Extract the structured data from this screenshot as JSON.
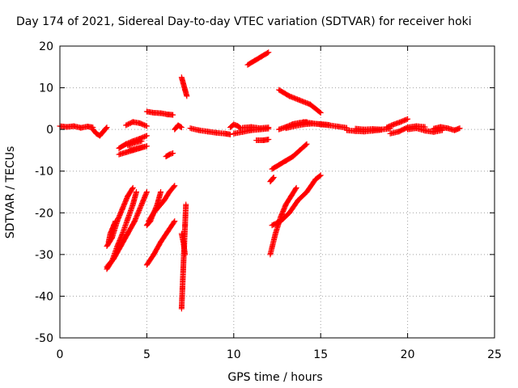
{
  "chart_data": {
    "type": "scatter",
    "title": "Day 174 of 2021, Sidereal Day-to-day VTEC variation (SDTVAR) for receiver hoki",
    "xlabel": "GPS time / hours",
    "ylabel": "SDTVAR / TECUs",
    "xlim": [
      0,
      25
    ],
    "ylim": [
      -50,
      20
    ],
    "xticks": [
      0,
      5,
      10,
      15,
      20,
      25
    ],
    "yticks": [
      -50,
      -40,
      -30,
      -20,
      -10,
      0,
      10,
      20
    ],
    "xtick_labels": [
      "0",
      "5",
      "10",
      "15",
      "20",
      "25"
    ],
    "ytick_labels": [
      "-50",
      "-40",
      "-30",
      "-20",
      "-10",
      "0",
      "10",
      "20"
    ],
    "grid": true,
    "marker": "plus",
    "color": "#ff0000",
    "segments": [
      {
        "x": [
          0.0,
          0.4,
          0.8,
          1.2,
          1.6,
          1.9
        ],
        "y": [
          0.8,
          0.6,
          0.8,
          0.4,
          0.7,
          0.5
        ]
      },
      {
        "x": [
          1.9,
          2.1,
          2.3,
          2.5,
          2.7
        ],
        "y": [
          0.0,
          -1.0,
          -1.5,
          -0.5,
          0.5
        ]
      },
      {
        "x": [
          2.7,
          3.0,
          3.3,
          3.6,
          3.9,
          4.2
        ],
        "y": [
          -28,
          -26,
          -22,
          -19,
          -16,
          -14
        ]
      },
      {
        "x": [
          2.7,
          3.0,
          3.3,
          3.6,
          3.9,
          4.2,
          4.4
        ],
        "y": [
          -33.5,
          -31.5,
          -28,
          -25,
          -21.5,
          -18,
          -15
        ]
      },
      {
        "x": [
          2.7,
          3.1,
          3.5,
          3.9,
          4.3,
          4.7,
          5.0
        ],
        "y": [
          -33,
          -31,
          -28,
          -25,
          -22,
          -18,
          -15
        ]
      },
      {
        "x": [
          2.8,
          2.9,
          3.0,
          3.1,
          3.2
        ],
        "y": [
          -27,
          -25,
          -24,
          -23,
          -22
        ]
      },
      {
        "x": [
          3.4,
          3.8,
          4.2,
          4.6,
          5.0
        ],
        "y": [
          -4.5,
          -3.5,
          -2.8,
          -2.2,
          -1.5
        ]
      },
      {
        "x": [
          3.4,
          3.8,
          4.2,
          4.6,
          5.0
        ],
        "y": [
          -6,
          -5.5,
          -5,
          -4.5,
          -4
        ]
      },
      {
        "x": [
          3.8,
          4.2,
          4.6,
          5.0
        ],
        "y": [
          1.0,
          1.8,
          1.5,
          0.8
        ]
      },
      {
        "x": [
          3.9,
          4.3,
          4.7
        ],
        "y": [
          -3.8,
          -3.2,
          -2.8
        ]
      },
      {
        "x": [
          4.0,
          4.4,
          4.8
        ],
        "y": [
          -5.0,
          -4.6,
          -4.2
        ]
      },
      {
        "x": [
          5.0,
          5.2,
          5.4,
          5.6,
          5.8
        ],
        "y": [
          -23,
          -22,
          -20,
          -18,
          -15
        ]
      },
      {
        "x": [
          5.0,
          5.4,
          5.8,
          6.2,
          6.6
        ],
        "y": [
          -32.5,
          -30,
          -27,
          -24.5,
          -22
        ]
      },
      {
        "x": [
          5.1,
          5.4,
          5.7,
          6.0,
          6.3,
          6.6
        ],
        "y": [
          -22,
          -20,
          -18.5,
          -17,
          -15,
          -13.5
        ]
      },
      {
        "x": [
          5.0,
          5.4,
          5.8,
          6.2,
          6.5
        ],
        "y": [
          4.3,
          4.0,
          3.9,
          3.6,
          3.5
        ]
      },
      {
        "x": [
          6.1,
          6.3,
          6.5
        ],
        "y": [
          -6.5,
          -6.0,
          -5.7
        ]
      },
      {
        "x": [
          6.6,
          6.8,
          7.0
        ],
        "y": [
          0.0,
          1.0,
          0.5
        ]
      },
      {
        "x": [
          7.0,
          7.1,
          7.2,
          7.3
        ],
        "y": [
          12.5,
          11,
          9.5,
          8
        ]
      },
      {
        "x": [
          7.0,
          7.05,
          7.1,
          7.15,
          7.2,
          7.25
        ],
        "y": [
          -43,
          -38,
          -33,
          -28,
          -23,
          -18
        ]
      },
      {
        "x": [
          7.0,
          7.1,
          7.2
        ],
        "y": [
          -25,
          -27,
          -30
        ]
      },
      {
        "x": [
          7.5,
          8.0,
          8.5,
          9.0,
          9.5,
          9.8
        ],
        "y": [
          0.3,
          -0.2,
          -0.5,
          -0.8,
          -1.0,
          -1.2
        ]
      },
      {
        "x": [
          9.8,
          10.0,
          10.2,
          10.4
        ],
        "y": [
          0.5,
          1.2,
          0.9,
          0.3
        ]
      },
      {
        "x": [
          10.0,
          10.5,
          11.0,
          11.5,
          12.0
        ],
        "y": [
          -1.0,
          -0.6,
          -0.2,
          0.0,
          0.2
        ]
      },
      {
        "x": [
          10.5,
          11.0,
          11.5,
          12.0
        ],
        "y": [
          0.4,
          0.6,
          0.3,
          0.5
        ]
      },
      {
        "x": [
          11.3,
          11.7,
          12.0
        ],
        "y": [
          -2.6,
          -2.6,
          -2.4
        ]
      },
      {
        "x": [
          10.8,
          11.2,
          11.6,
          12.0
        ],
        "y": [
          15.5,
          16.5,
          17.5,
          18.5
        ]
      },
      {
        "x": [
          12.1,
          12.2,
          12.3
        ],
        "y": [
          -12.5,
          -12,
          -11.5
        ]
      },
      {
        "x": [
          12.2,
          12.6,
          13.0,
          13.4,
          13.8,
          14.2
        ],
        "y": [
          -9.5,
          -8.5,
          -7.5,
          -6.5,
          -5.0,
          -3.5
        ]
      },
      {
        "x": [
          12.1,
          12.4,
          12.7,
          13.0,
          13.3,
          13.6
        ],
        "y": [
          -30,
          -25,
          -21,
          -18,
          -16,
          -14
        ]
      },
      {
        "x": [
          12.2,
          12.7,
          13.2,
          13.7,
          14.2,
          14.7,
          15.0
        ],
        "y": [
          -23,
          -22,
          -20,
          -17,
          -15,
          -12,
          -11
        ]
      },
      {
        "x": [
          12.6,
          13.2,
          13.8,
          14.4,
          15.0
        ],
        "y": [
          9.5,
          8.0,
          7.0,
          6.0,
          4.0
        ]
      },
      {
        "x": [
          12.6,
          13.0,
          13.4,
          13.8,
          14.2
        ],
        "y": [
          0.0,
          0.6,
          1.3,
          1.6,
          1.8
        ]
      },
      {
        "x": [
          13.0,
          13.5,
          14.0,
          14.5,
          15.0,
          15.5
        ],
        "y": [
          0.3,
          0.8,
          1.2,
          1.4,
          1.3,
          1.1
        ]
      },
      {
        "x": [
          14.0,
          14.5,
          15.0,
          15.5,
          16.0,
          16.5
        ],
        "y": [
          1.8,
          1.5,
          1.2,
          1.0,
          0.7,
          0.4
        ]
      },
      {
        "x": [
          16.5,
          17.0,
          17.5,
          18.0,
          18.5
        ],
        "y": [
          -0.2,
          -0.4,
          -0.5,
          -0.3,
          -0.1
        ]
      },
      {
        "x": [
          17.0,
          17.5,
          18.0,
          18.5,
          19.0
        ],
        "y": [
          0.2,
          0.0,
          0.1,
          0.0,
          0.2
        ]
      },
      {
        "x": [
          18.8,
          19.2,
          19.6,
          20.0
        ],
        "y": [
          0.5,
          1.2,
          1.8,
          2.5
        ]
      },
      {
        "x": [
          19.0,
          19.5,
          20.0,
          20.5,
          21.0
        ],
        "y": [
          -1.0,
          -0.5,
          0.5,
          0.8,
          0.6
        ]
      },
      {
        "x": [
          20.0,
          20.5,
          21.0,
          21.5,
          22.0
        ],
        "y": [
          0.0,
          0.3,
          -0.3,
          -0.6,
          -0.2
        ]
      },
      {
        "x": [
          21.5,
          21.9,
          22.3,
          22.7,
          23.0
        ],
        "y": [
          0.2,
          0.6,
          0.3,
          -0.2,
          0.3
        ]
      }
    ]
  }
}
